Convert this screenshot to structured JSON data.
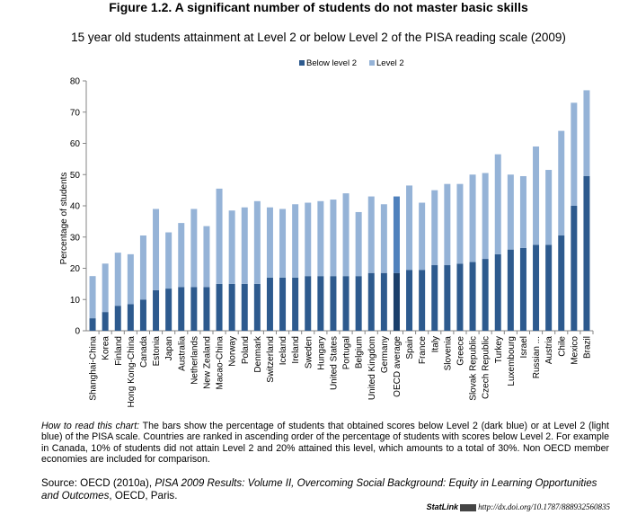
{
  "figure_title": "Figure 1.2. A significant number of students do not master basic skills",
  "chart_data": {
    "type": "bar",
    "stacked": true,
    "title": "15 year old students attainment at Level 2 or below Level 2 of the PISA reading scale (2009)",
    "xlabel": "",
    "ylabel": "Percentage of students",
    "ylim": [
      0,
      80
    ],
    "yticks": [
      0,
      10,
      20,
      30,
      40,
      50,
      60,
      70,
      80
    ],
    "legend_position": "top-right",
    "categories": [
      "Shanghai-China",
      "Korea",
      "Finland",
      "Hong Kong-China",
      "Canada",
      "Estonia",
      "Japan",
      "Australia",
      "Netherlands",
      "New Zealand",
      "Macao-China",
      "Norway",
      "Poland",
      "Denmark",
      "Switzerland",
      "Iceland",
      "Ireland",
      "Sweden",
      "Hungary",
      "United States",
      "Portugal",
      "Belgium",
      "United Kingdom",
      "Germany",
      "OECD average",
      "Spain",
      "France",
      "Italy",
      "Slovenia",
      "Greece",
      "Slovak Republic",
      "Czech Republic",
      "Turkey",
      "Luxembourg",
      "Israel",
      "Russian ...",
      "Austria",
      "Chile",
      "Mexico",
      "Brazil"
    ],
    "highlight_category": "OECD average",
    "series": [
      {
        "name": "Below level 2",
        "color": "#2d5a8e",
        "highlight_color": "#1a3f6b",
        "values": [
          4,
          6,
          8,
          8.5,
          10,
          13,
          13.5,
          14,
          14,
          14,
          15,
          15,
          15,
          15,
          17,
          17,
          17,
          17.5,
          17.5,
          17.5,
          17.5,
          17.5,
          18.5,
          18.5,
          18.5,
          19.5,
          19.5,
          21,
          21,
          21.5,
          22,
          23,
          24.5,
          26,
          26.5,
          27.5,
          27.5,
          30.5,
          40,
          49.5
        ]
      },
      {
        "name": "Level 2",
        "color": "#95b3d7",
        "highlight_color": "#4f81bd",
        "values": [
          13.5,
          15.5,
          17,
          16,
          20.5,
          26,
          18,
          20.5,
          25,
          19.5,
          30.5,
          23.5,
          24.5,
          26.5,
          22.5,
          22,
          23.5,
          23.5,
          24,
          24.5,
          26.5,
          20.5,
          24.5,
          22,
          24.5,
          27,
          21.5,
          24,
          26,
          25.5,
          28,
          27.5,
          32,
          24,
          23,
          31.5,
          24,
          33.5,
          33,
          27.5
        ]
      }
    ]
  },
  "note": {
    "lead": "How to read this chart:",
    "text": " The bars show the percentage of students that obtained scores below Level 2 (dark blue) or at Level 2 (light blue) of the PISA scale. Countries are ranked in ascending order of the percentage of students with scores below Level 2. For example in Canada, 10% of students did not attain Level 2 and 20% attained this level, which amounts to a total of 30%. Non OECD member economies are included for comparison."
  },
  "source": {
    "prefix": "Source: OECD (2010a), ",
    "italic": "PISA 2009 Results: Volume II, Overcoming Social Background: Equity in Learning Opportunities and Outcomes",
    "suffix": ", OECD, Paris."
  },
  "statlink": {
    "label": "StatLink",
    "url": "http://dx.doi.org/10.1787/888932560835"
  }
}
